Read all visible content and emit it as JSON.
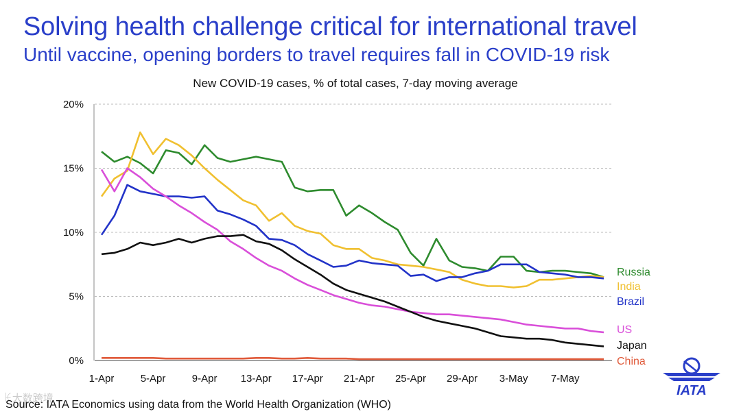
{
  "header": {
    "title": "Solving health challenge critical for international travel",
    "subtitle": "Until vaccine, opening borders to travel requires fall in COVID-19 risk"
  },
  "footer": {
    "source": "Source: IATA Economics using data from the World Health Organization (WHO)",
    "watermark": "ꀘ大数跨境"
  },
  "logo": {
    "text": "IATA",
    "color": "#2a3fc9"
  },
  "chart_data": {
    "type": "line",
    "title": "New COVID-19 cases, % of total cases, 7-day moving average",
    "xlabel": "",
    "ylabel": "",
    "x": [
      "1-Apr",
      "2-Apr",
      "3-Apr",
      "4-Apr",
      "5-Apr",
      "6-Apr",
      "7-Apr",
      "8-Apr",
      "9-Apr",
      "10-Apr",
      "11-Apr",
      "12-Apr",
      "13-Apr",
      "14-Apr",
      "15-Apr",
      "16-Apr",
      "17-Apr",
      "18-Apr",
      "19-Apr",
      "20-Apr",
      "21-Apr",
      "22-Apr",
      "23-Apr",
      "24-Apr",
      "25-Apr",
      "26-Apr",
      "27-Apr",
      "28-Apr",
      "29-Apr",
      "30-Apr",
      "1-May",
      "2-May",
      "3-May",
      "4-May",
      "5-May",
      "6-May",
      "7-May",
      "8-May",
      "9-May",
      "10-May"
    ],
    "x_tick_labels": [
      "1-Apr",
      "5-Apr",
      "9-Apr",
      "13-Apr",
      "17-Apr",
      "21-Apr",
      "25-Apr",
      "29-Apr",
      "3-May",
      "7-May"
    ],
    "x_tick_indices": [
      0,
      4,
      8,
      12,
      16,
      20,
      24,
      28,
      32,
      36
    ],
    "ylim": [
      0,
      20
    ],
    "y_ticks": [
      0,
      5,
      10,
      15,
      20
    ],
    "y_tick_labels": [
      "0%",
      "5%",
      "10%",
      "15%",
      "20%"
    ],
    "grid": "horizontal dashed",
    "legend_placement": "right, at line ends",
    "series": [
      {
        "name": "Russia",
        "color": "#2e8b2e",
        "values": [
          16.3,
          15.5,
          15.9,
          15.4,
          14.6,
          16.4,
          16.2,
          15.3,
          16.8,
          15.8,
          15.5,
          15.7,
          15.9,
          15.7,
          15.5,
          13.5,
          13.2,
          13.3,
          13.3,
          11.3,
          12.1,
          11.5,
          10.8,
          10.2,
          8.4,
          7.4,
          9.5,
          7.8,
          7.3,
          7.2,
          7.0,
          8.1,
          8.1,
          7.0,
          6.9,
          7.0,
          7.0,
          6.9,
          6.8,
          6.5
        ]
      },
      {
        "name": "India",
        "color": "#f0c030",
        "values": [
          12.8,
          14.2,
          14.8,
          17.8,
          16.1,
          17.3,
          16.8,
          16.0,
          15.0,
          14.1,
          13.3,
          12.5,
          12.1,
          10.9,
          11.5,
          10.5,
          10.1,
          9.9,
          9.0,
          8.7,
          8.7,
          8.0,
          7.8,
          7.5,
          7.4,
          7.3,
          7.1,
          6.9,
          6.3,
          6.0,
          5.8,
          5.8,
          5.7,
          5.8,
          6.3,
          6.3,
          6.4,
          6.5,
          6.6,
          6.5
        ]
      },
      {
        "name": "Brazil",
        "color": "#2233c8",
        "values": [
          9.8,
          11.3,
          13.7,
          13.2,
          13.0,
          12.8,
          12.8,
          12.7,
          12.8,
          11.7,
          11.4,
          11.0,
          10.5,
          9.5,
          9.4,
          9.0,
          8.3,
          7.8,
          7.3,
          7.4,
          7.8,
          7.6,
          7.5,
          7.4,
          6.6,
          6.7,
          6.2,
          6.5,
          6.5,
          6.8,
          7.0,
          7.5,
          7.5,
          7.5,
          6.9,
          6.8,
          6.7,
          6.5,
          6.5,
          6.4
        ]
      },
      {
        "name": "US",
        "color": "#d94fd9",
        "values": [
          14.9,
          13.2,
          15.0,
          14.3,
          13.4,
          12.8,
          12.1,
          11.5,
          10.8,
          10.2,
          9.3,
          8.7,
          8.0,
          7.4,
          7.0,
          6.4,
          5.9,
          5.5,
          5.1,
          4.8,
          4.5,
          4.3,
          4.2,
          4.0,
          3.8,
          3.7,
          3.6,
          3.6,
          3.5,
          3.4,
          3.3,
          3.2,
          3.0,
          2.8,
          2.7,
          2.6,
          2.5,
          2.5,
          2.3,
          2.2
        ]
      },
      {
        "name": "Japan",
        "color": "#111111",
        "values": [
          8.3,
          8.4,
          8.7,
          9.2,
          9.0,
          9.2,
          9.5,
          9.2,
          9.5,
          9.7,
          9.7,
          9.8,
          9.3,
          9.1,
          8.6,
          7.9,
          7.3,
          6.7,
          6.0,
          5.5,
          5.2,
          4.9,
          4.6,
          4.2,
          3.8,
          3.4,
          3.1,
          2.9,
          2.7,
          2.5,
          2.2,
          1.9,
          1.8,
          1.7,
          1.7,
          1.6,
          1.4,
          1.3,
          1.2,
          1.1
        ]
      },
      {
        "name": "China",
        "color": "#e05a3a",
        "values": [
          0.2,
          0.2,
          0.2,
          0.2,
          0.2,
          0.15,
          0.15,
          0.15,
          0.15,
          0.15,
          0.15,
          0.15,
          0.2,
          0.2,
          0.15,
          0.15,
          0.2,
          0.15,
          0.15,
          0.15,
          0.1,
          0.1,
          0.1,
          0.1,
          0.1,
          0.1,
          0.1,
          0.1,
          0.1,
          0.1,
          0.1,
          0.1,
          0.1,
          0.1,
          0.1,
          0.1,
          0.1,
          0.1,
          0.1,
          0.1
        ]
      }
    ]
  }
}
